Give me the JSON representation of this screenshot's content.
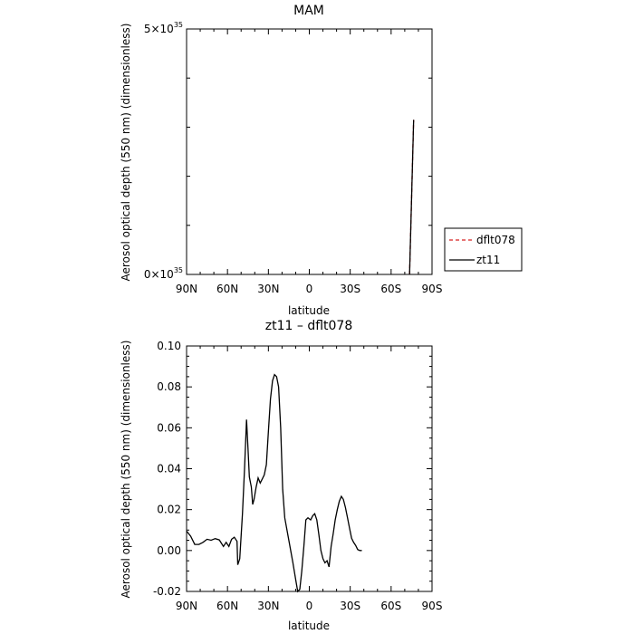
{
  "chart_data": [
    {
      "type": "line",
      "title": "MAM",
      "xlabel": "latitude",
      "ylabel": "Aerosol optical depth (550 nm) (dimensionless)",
      "x_ticks": [
        "90N",
        "60N",
        "30N",
        "0",
        "30S",
        "60S",
        "90S"
      ],
      "x_tick_values": [
        90,
        60,
        30,
        0,
        -30,
        -60,
        -90
      ],
      "xlim": [
        90,
        -90
      ],
      "y_ticks": [
        {
          "base": "0",
          "exp": "35",
          "value": 0
        },
        {
          "base": "5",
          "exp": "35",
          "value": 5e+35
        }
      ],
      "ylim": [
        0,
        5e+35
      ],
      "series": [
        {
          "name": "dflt078",
          "color": "#d62020",
          "dash": "4,3",
          "points": [
            [
              -73.5,
              0
            ],
            [
              -76.5,
              3.15e+35
            ]
          ]
        },
        {
          "name": "zt11",
          "color": "#000000",
          "dash": "",
          "points": [
            [
              -73.5,
              0
            ],
            [
              -76.5,
              3.15e+35
            ]
          ]
        }
      ],
      "legend_position": "right"
    },
    {
      "type": "line",
      "title": "zt11 – dflt078",
      "xlabel": "latitude",
      "ylabel": "Aerosol optical depth (550 nm) (dimensionless)",
      "x_ticks": [
        "90N",
        "60N",
        "30N",
        "0",
        "30S",
        "60S",
        "90S"
      ],
      "x_tick_values": [
        90,
        60,
        30,
        0,
        -30,
        -60,
        -90
      ],
      "xlim": [
        90,
        -90
      ],
      "y_ticks": [
        "0.10",
        "0.08",
        "0.06",
        "0.04",
        "0.02",
        "0.00",
        "-0.02"
      ],
      "y_tick_values": [
        0.1,
        0.08,
        0.06,
        0.04,
        0.02,
        0.0,
        -0.02
      ],
      "ylim": [
        -0.02,
        0.1
      ],
      "series": [
        {
          "name": "zt11 – dflt078",
          "color": "#000000",
          "points": [
            [
              90,
              0.0095
            ],
            [
              87,
              0.007
            ],
            [
              84,
              0.003
            ],
            [
              81,
              0.003
            ],
            [
              78,
              0.004
            ],
            [
              75,
              0.0055
            ],
            [
              72,
              0.005
            ],
            [
              69,
              0.0058
            ],
            [
              66,
              0.0052
            ],
            [
              63,
              0.002
            ],
            [
              61,
              0.004
            ],
            [
              59,
              0.002
            ],
            [
              57,
              0.0055
            ],
            [
              55,
              0.0065
            ],
            [
              53,
              0.0045
            ],
            [
              52.5,
              -0.007
            ],
            [
              51,
              -0.004
            ],
            [
              49,
              0.018
            ],
            [
              47.5,
              0.04
            ],
            [
              46,
              0.064
            ],
            [
              45,
              0.05
            ],
            [
              44,
              0.036
            ],
            [
              42.5,
              0.031
            ],
            [
              41.5,
              0.0225
            ],
            [
              40.5,
              0.025
            ],
            [
              39,
              0.031
            ],
            [
              37.5,
              0.0355
            ],
            [
              36,
              0.033
            ],
            [
              34.5,
              0.035
            ],
            [
              33,
              0.037
            ],
            [
              31.5,
              0.042
            ],
            [
              30,
              0.058
            ],
            [
              28.5,
              0.074
            ],
            [
              27,
              0.083
            ],
            [
              25.5,
              0.086
            ],
            [
              24,
              0.085
            ],
            [
              22.5,
              0.08
            ],
            [
              21,
              0.06
            ],
            [
              19.5,
              0.03
            ],
            [
              18,
              0.016
            ],
            [
              15,
              0.005
            ],
            [
              12,
              -0.006
            ],
            [
              10,
              -0.014
            ],
            [
              8.5,
              -0.02
            ],
            [
              7,
              -0.019
            ],
            [
              5.5,
              -0.01
            ],
            [
              4,
              0.002
            ],
            [
              2.5,
              0.015
            ],
            [
              1,
              0.016
            ],
            [
              -1,
              0.015
            ],
            [
              -2.5,
              0.017
            ],
            [
              -4,
              0.018
            ],
            [
              -5.5,
              0.015
            ],
            [
              -7,
              0.008
            ],
            [
              -8.5,
              0.0
            ],
            [
              -10,
              -0.004
            ],
            [
              -11.5,
              -0.006
            ],
            [
              -13,
              -0.005
            ],
            [
              -14.5,
              -0.008
            ],
            [
              -16,
              0.002
            ],
            [
              -17.5,
              0.008
            ],
            [
              -19,
              0.015
            ],
            [
              -20.5,
              0.02
            ],
            [
              -22,
              0.024
            ],
            [
              -23.5,
              0.0265
            ],
            [
              -25,
              0.025
            ],
            [
              -26.5,
              0.021
            ],
            [
              -28,
              0.016
            ],
            [
              -29.5,
              0.011
            ],
            [
              -31,
              0.006
            ],
            [
              -32.5,
              0.004
            ],
            [
              -34,
              0.0025
            ],
            [
              -35.5,
              0.0005
            ],
            [
              -37,
              0.0
            ],
            [
              -38.5,
              0.0
            ]
          ]
        }
      ]
    }
  ]
}
